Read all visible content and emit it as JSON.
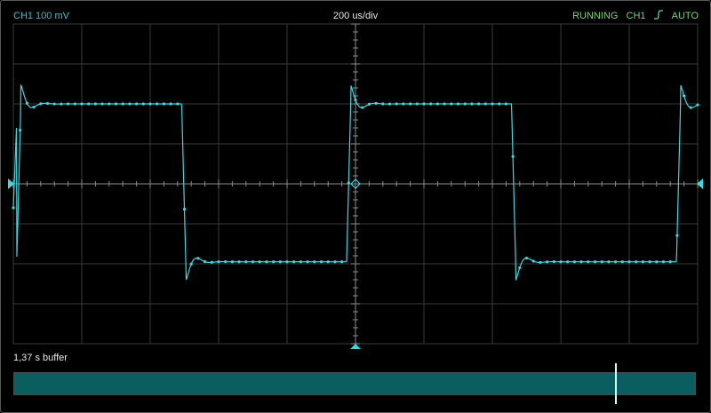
{
  "status_bar": {
    "channel_label": "CH1 100 mV",
    "timebase_label": "200 us/div",
    "run_state": "RUNNING",
    "trigger_source": "CH1",
    "trigger_slope_icon": "rising-edge-icon",
    "trigger_mode": "AUTO"
  },
  "display": {
    "grid_divisions_x": 10,
    "grid_divisions_y": 8,
    "trace_color": "#3fd6de",
    "grid_color": "#3a3a3a",
    "axis_color": "#8c8c8c",
    "marker_color": "#3fd6de"
  },
  "waveform": {
    "type": "square wave with overshoot ringing",
    "period_divisions": 4.82,
    "high_divisions": 2.0,
    "low_divisions": -1.95,
    "overshoot_divisions": 0.48,
    "first_rise_division": 0.05
  },
  "buffer": {
    "label": "1,37 s buffer",
    "bar_color": "#0b5e60",
    "position_fraction": 0.881
  },
  "colors": {
    "status_channel": "#38c0c7",
    "status_running": "#7bd17b",
    "text": "#e8e8e8"
  }
}
